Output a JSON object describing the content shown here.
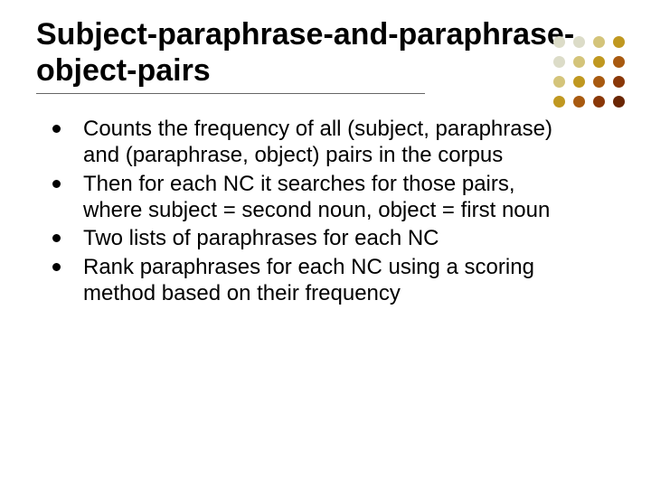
{
  "title": "Subject-paraphrase-and-paraphrase-object-pairs",
  "title_fontsize": 34,
  "title_color": "#000000",
  "underline_width": 430,
  "underline_color": "#666666",
  "bullets": [
    "Counts the frequency of all (subject, paraphrase) and (paraphrase, object) pairs in the corpus",
    "Then for each NC it searches for those pairs, where subject = second noun, object = first noun",
    "Two lists of paraphrases for each NC",
    "Rank paraphrases for each NC using a scoring method based on their frequency"
  ],
  "bullet_fontsize": 24,
  "bullet_color": "#000000",
  "background_color": "#ffffff",
  "decoration": {
    "type": "dot-grid",
    "rows": 4,
    "cols": 4,
    "dot_size": 13,
    "gap": 8,
    "colors": [
      [
        "#dcdcc8",
        "#dcdcc8",
        "#d4c47a",
        "#c09820"
      ],
      [
        "#dcdcc8",
        "#d4c47a",
        "#c09820",
        "#a85a10"
      ],
      [
        "#d4c47a",
        "#c09820",
        "#a85a10",
        "#8a3808"
      ],
      [
        "#c09820",
        "#a85a10",
        "#8a3808",
        "#6a2604"
      ]
    ]
  }
}
